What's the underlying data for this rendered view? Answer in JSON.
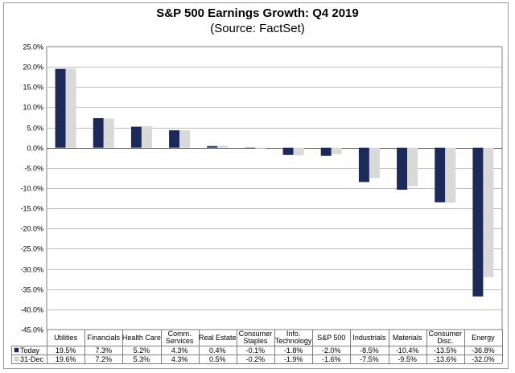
{
  "title": "S&P 500 Earnings Growth: Q4 2019",
  "subtitle": "(Source: FactSet)",
  "colors": {
    "today": "#1c2a5a",
    "dec31": "#d9d9d9",
    "grid": "#bfbfbf"
  },
  "chart_data": {
    "type": "bar",
    "title": "S&P 500 Earnings Growth: Q4 2019",
    "subtitle": "(Source: FactSet)",
    "categories": [
      [
        "Utilities"
      ],
      [
        "Financials"
      ],
      [
        "Health Care"
      ],
      [
        "Comm.",
        "Services"
      ],
      [
        "Real Estate"
      ],
      [
        "Consumer",
        "Staples"
      ],
      [
        "Info.",
        "Technology"
      ],
      [
        "S&P 500"
      ],
      [
        "Industrials"
      ],
      [
        "Materials"
      ],
      [
        "Consumer",
        "Disc."
      ],
      [
        "Energy"
      ]
    ],
    "series": [
      {
        "name": "Today",
        "values": [
          19.5,
          7.3,
          5.2,
          4.3,
          0.4,
          -0.1,
          -1.8,
          -2.0,
          -8.5,
          -10.4,
          -13.5,
          -36.8
        ],
        "labels": [
          "19.5%",
          "7.3%",
          "5.2%",
          "4.3%",
          "0.4%",
          "-0.1%",
          "-1.8%",
          "-2.0%",
          "-8.5%",
          "-10.4%",
          "-13.5%",
          "-36.8%"
        ]
      },
      {
        "name": "31-Dec",
        "values": [
          19.6,
          7.2,
          5.3,
          4.3,
          0.5,
          -0.2,
          -1.9,
          -1.6,
          -7.5,
          -9.5,
          -13.6,
          -32.0
        ],
        "labels": [
          "19.6%",
          "7.2%",
          "5.3%",
          "4.3%",
          "0.5%",
          "-0.2%",
          "-1.9%",
          "-1.6%",
          "-7.5%",
          "-9.5%",
          "-13.6%",
          "-32.0%"
        ]
      }
    ],
    "ylim": [
      -45,
      25
    ],
    "yticks": [
      25,
      20,
      15,
      10,
      5,
      0,
      -5,
      -10,
      -15,
      -20,
      -25,
      -30,
      -35,
      -40,
      -45
    ],
    "ytick_labels": [
      "25.0%",
      "20.0%",
      "15.0%",
      "10.0%",
      "5.0%",
      "0.0%",
      "-5.0%",
      "-10.0%",
      "-15.0%",
      "-20.0%",
      "-25.0%",
      "-30.0%",
      "-35.0%",
      "-40.0%",
      "-45.0%"
    ],
    "grid": true,
    "legend": "data-table"
  }
}
